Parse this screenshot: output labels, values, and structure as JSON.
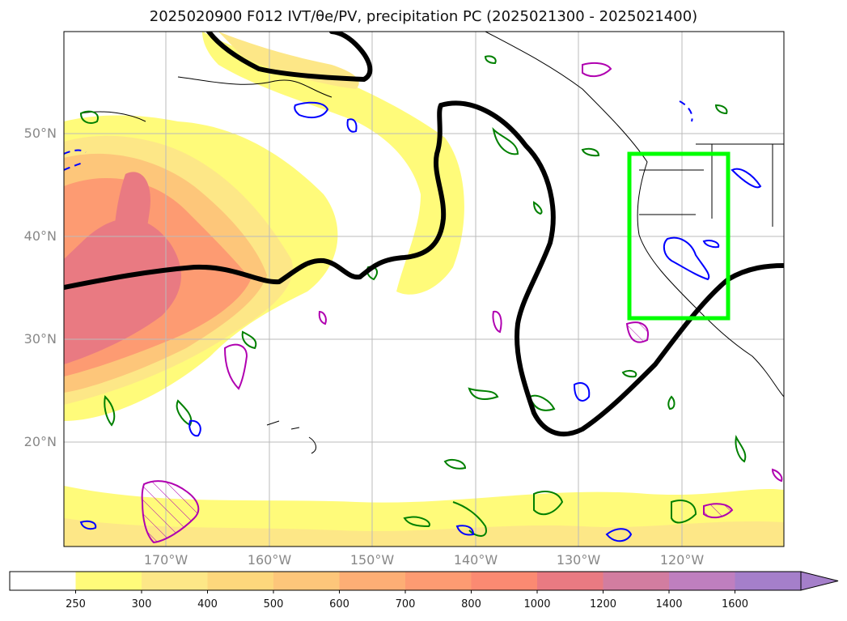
{
  "title": "2025020900 F012 IVT/θe/PV, precipitation PC (2025021300 - 2025021400)",
  "lat_labels": [
    "50°N",
    "40°N",
    "30°N",
    "20°N"
  ],
  "lon_labels": [
    "170°W",
    "160°W",
    "150°W",
    "140°W",
    "130°W",
    "120°W"
  ],
  "colorbar": {
    "ticks": [
      "250",
      "300",
      "400",
      "500",
      "600",
      "700",
      "800",
      "1000",
      "1200",
      "1400",
      "1600"
    ],
    "colors": [
      "#ffffff",
      "#fffb7a",
      "#fde787",
      "#fdd77c",
      "#fdc67a",
      "#fdae75",
      "#fd9b72",
      "#fb8a72",
      "#e97a82",
      "#d27da0",
      "#bf7fbf",
      "#a57fca"
    ]
  },
  "map_extent": {
    "lon": [
      -180,
      -110
    ],
    "lat": [
      10,
      60
    ]
  },
  "colors": {
    "ivt_line": "#000000",
    "theta_e_pos": "#008000",
    "pv_neg": "#0000ff",
    "precip_pc": "#b000b0",
    "highlight_box": "#00ff00"
  }
}
